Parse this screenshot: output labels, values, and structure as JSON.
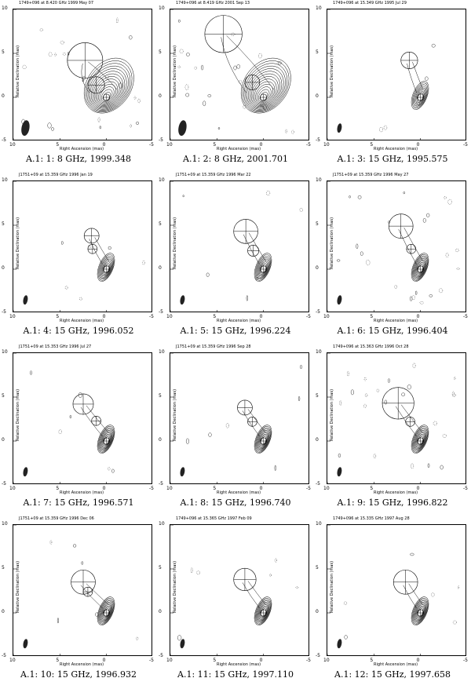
{
  "axes": {
    "ylabel": "Relative Declination (mas)",
    "xlabel": "Right Ascension (mas)",
    "yticks": [
      "10",
      "5",
      "0",
      "-5"
    ],
    "xticks": [
      "10",
      "5",
      "0",
      "-5"
    ]
  },
  "panels": [
    {
      "title": "1749+096 at 8.420 GHz 1999 May 07",
      "caption": "A.1: 1: 8 GHz, 1999.348"
    },
    {
      "title": "1749+096 at 8.419 GHz 2001 Sep 13",
      "caption": "A.1: 2: 8 GHz, 2001.701"
    },
    {
      "title": "1749+096 at 15.349 GHz 1995 Jul 29",
      "caption": "A.1: 3: 15 GHz, 1995.575"
    },
    {
      "title": "J1751+09 at 15.359 GHz 1996 Jan 19",
      "caption": "A.1: 4: 15 GHz, 1996.052"
    },
    {
      "title": "J1751+09 at 15.359 GHz 1996 Mar 22",
      "caption": "A.1: 5: 15 GHz, 1996.224"
    },
    {
      "title": "J1751+09 at 15.359 GHz 1996 May 27",
      "caption": "A.1: 6: 15 GHz, 1996.404"
    },
    {
      "title": "J1751+09 at 15.353 GHz 1996 Jul 27",
      "caption": "A.1: 7: 15 GHz, 1996.571"
    },
    {
      "title": "J1751+09 at 15.359 GHz 1996 Sep 28",
      "caption": "A.1: 8: 15 GHz, 1996.740"
    },
    {
      "title": "1749+096 at 15.363 GHz 1996 Oct 28",
      "caption": "A.1: 9: 15 GHz, 1996.822"
    },
    {
      "title": "J1751+09 at 15.359 GHz 1996 Dec 06",
      "caption": "A.1: 10: 15 GHz, 1996.932"
    },
    {
      "title": "1749+096 at 15.365 GHz 1997 Feb 09",
      "caption": "A.1: 11: 15 GHz, 1997.110"
    },
    {
      "title": "1749+096 at 15.335 GHz 1997 Aug 28",
      "caption": "A.1: 12: 15 GHz, 1997.658"
    }
  ]
}
